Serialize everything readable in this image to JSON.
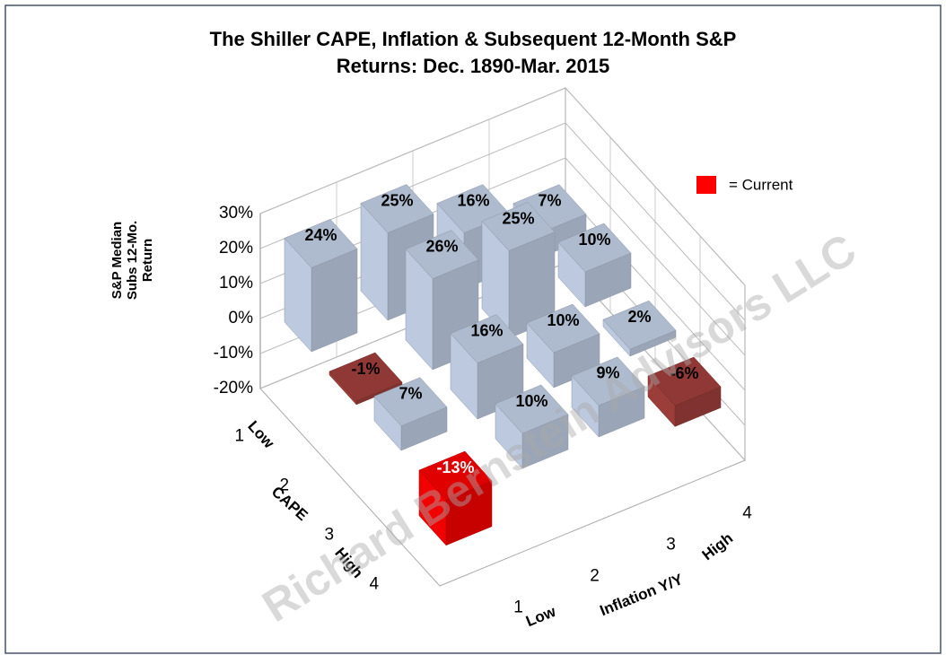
{
  "chart_data": {
    "type": "bar3d",
    "title": [
      "The Shiller CAPE, Inflation & Subsequent 12-Month S&P",
      "Returns:   Dec. 1890-Mar.  2015"
    ],
    "ylabel": [
      "S&P Median",
      "Subs 12-Mo.",
      "Return"
    ],
    "ylim": [
      -20,
      30
    ],
    "yticks": [
      {
        "value": -20,
        "label": "-20%"
      },
      {
        "value": -10,
        "label": "-10%"
      },
      {
        "value": 0,
        "label": "0%"
      },
      {
        "value": 10,
        "label": "10%"
      },
      {
        "value": 20,
        "label": "20%"
      },
      {
        "value": 30,
        "label": "30%"
      }
    ],
    "z_categories": [
      "1",
      "2",
      "3",
      "4"
    ],
    "z_axis": {
      "label": "CAPE",
      "low": "Low",
      "high": "High"
    },
    "x_categories": [
      "1",
      "2",
      "3",
      "4"
    ],
    "x_axis": {
      "label": "Inflation Y/Y",
      "low": "Low",
      "high": "High"
    },
    "series": [
      {
        "values": [
          24,
          25,
          16,
          7
        ],
        "value_labels": [
          "24%",
          "25%",
          "16%",
          "7%"
        ],
        "colors": [
          "#c6d4ea",
          "#c6d4ea",
          "#c6d4ea",
          "#c6d4ea"
        ]
      },
      {
        "values": [
          -1,
          26,
          25,
          10
        ],
        "value_labels": [
          "-1%",
          "26%",
          "25%",
          "10%"
        ],
        "colors": [
          "#a3403c",
          "#c6d4ea",
          "#c6d4ea",
          "#c6d4ea"
        ]
      },
      {
        "values": [
          7,
          16,
          10,
          2
        ],
        "value_labels": [
          "7%",
          "16%",
          "10%",
          "2%"
        ],
        "colors": [
          "#c6d4ea",
          "#c6d4ea",
          "#c6d4ea",
          "#c6d4ea"
        ]
      },
      {
        "values": [
          -13,
          10,
          9,
          -6
        ],
        "value_labels": [
          "-13%",
          "10%",
          "9%",
          "-6%"
        ],
        "colors": [
          "#ff0000",
          "#c6d4ea",
          "#c6d4ea",
          "#a3403c"
        ]
      }
    ],
    "legend": {
      "label": "= Current",
      "color": "#ff0000"
    },
    "grid": true,
    "watermark": "Richard Bernstein Advisors LLC"
  }
}
